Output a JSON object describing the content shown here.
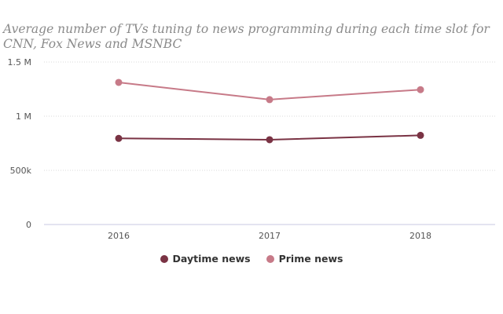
{
  "chart_data": {
    "type": "line",
    "title": "Average number of TVs tuning to news programming during each time slot for CNN, Fox News and MSNBC",
    "xlabel": "",
    "ylabel": "",
    "categories": [
      "2016",
      "2017",
      "2018"
    ],
    "ylim": [
      0,
      1500000
    ],
    "yticks": [
      0,
      500000,
      1000000,
      1500000
    ],
    "ytick_labels": [
      "0",
      "500k",
      "1 M",
      "1.5 M"
    ],
    "grid": true,
    "legend": "bottom-center",
    "series": [
      {
        "name": "Daytime news",
        "color": "#7a3344",
        "values": [
          795000,
          783000,
          823000
        ]
      },
      {
        "name": "Prime news",
        "color": "#c77a88",
        "values": [
          1312000,
          1153000,
          1245000
        ]
      }
    ]
  }
}
